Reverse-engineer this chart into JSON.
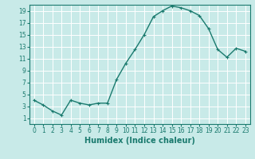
{
  "x": [
    0,
    1,
    2,
    3,
    4,
    5,
    6,
    7,
    8,
    9,
    10,
    11,
    12,
    13,
    14,
    15,
    16,
    17,
    18,
    19,
    20,
    21,
    22,
    23
  ],
  "y": [
    4.0,
    3.2,
    2.2,
    1.5,
    4.0,
    3.5,
    3.2,
    3.5,
    3.5,
    7.5,
    10.2,
    12.5,
    15.0,
    18.0,
    19.0,
    19.8,
    19.5,
    19.0,
    18.2,
    16.0,
    12.5,
    11.2,
    12.7,
    12.2
  ],
  "xlabel": "Humidex (Indice chaleur)",
  "ylim": [
    0,
    20
  ],
  "xlim": [
    -0.5,
    23.5
  ],
  "yticks": [
    1,
    3,
    5,
    7,
    9,
    11,
    13,
    15,
    17,
    19
  ],
  "xticks": [
    0,
    1,
    2,
    3,
    4,
    5,
    6,
    7,
    8,
    9,
    10,
    11,
    12,
    13,
    14,
    15,
    16,
    17,
    18,
    19,
    20,
    21,
    22,
    23
  ],
  "line_color": "#1a7a6e",
  "marker": "+",
  "bg_color": "#c8eae8",
  "grid_color": "#a0d4d0",
  "tick_label_fontsize": 5.5,
  "xlabel_fontsize": 7.0,
  "linewidth": 1.0,
  "markersize": 3.5
}
